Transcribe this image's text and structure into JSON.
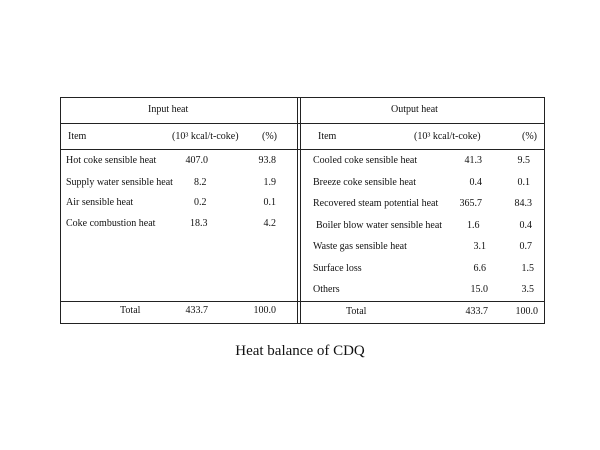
{
  "input": {
    "header": "Input heat",
    "col_item": "Item",
    "col_value": "(10³ kcal/t-coke)",
    "col_pct": "(%)",
    "rows": [
      {
        "item": "Hot coke sensible heat",
        "value": "407.0",
        "pct": "93.8"
      },
      {
        "item": "Supply water sensible heat",
        "value": "8.2",
        "pct": "1.9"
      },
      {
        "item": "Air sensible heat",
        "value": "0.2",
        "pct": "0.1"
      },
      {
        "item": "Coke combustion heat",
        "value": "18.3",
        "pct": "4.2"
      }
    ],
    "total_label": "Total",
    "total_value": "433.7",
    "total_pct": "100.0"
  },
  "output": {
    "header": "Output heat",
    "col_item": "Item",
    "col_value": "(10³ kcal/t-coke)",
    "col_pct": "(%)",
    "rows": [
      {
        "item": "Cooled coke sensible heat",
        "value": "41.3",
        "pct": "9.5"
      },
      {
        "item": "Breeze coke sensible heat",
        "value": "0.4",
        "pct": "0.1"
      },
      {
        "item": "Recovered steam potential heat",
        "value": "365.7",
        "pct": "84.3"
      },
      {
        "item": "Boiler  blow  water sensible heat",
        "value": "1.6",
        "pct": "0.4"
      },
      {
        "item": "Waste gas sensible heat",
        "value": "3.1",
        "pct": "0.7"
      },
      {
        "item": "Surface loss",
        "value": "6.6",
        "pct": "1.5"
      },
      {
        "item": "Others",
        "value": "15.0",
        "pct": "3.5"
      }
    ],
    "total_label": "Total",
    "total_value": "433.7",
    "total_pct": "100.0"
  },
  "caption": "Heat balance of CDQ"
}
